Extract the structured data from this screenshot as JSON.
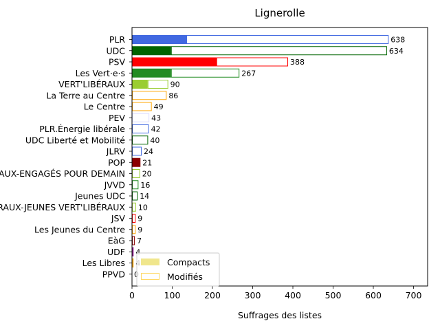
{
  "chart_data": {
    "type": "bar",
    "orientation": "horizontal",
    "title": "Lignerolle",
    "xlabel": "Suffrages des listes",
    "ylabel": "",
    "xlim": [
      0,
      735
    ],
    "xticks": [
      0,
      100,
      200,
      300,
      400,
      500,
      600,
      700
    ],
    "grid": false,
    "legend_placement": "lower-left",
    "legend": [
      {
        "label": "Compacts",
        "style": "filled",
        "color": "#f0e68c"
      },
      {
        "label": "Modifiés",
        "style": "outline",
        "color": "#ffd966"
      }
    ],
    "categories": [
      "PLR",
      "UDC",
      "PSV",
      "Les Vert·e·s",
      "VERT'LIBÉRAUX",
      "La Terre au Centre",
      "Le Centre",
      "PEV",
      "PLR.Énergie libérale",
      "UDC Liberté et Mobilité",
      "JLRV",
      "POP",
      "VERT'LIBÉRAUX-ENGAGÉS POUR DEMAIN",
      "JVVD",
      "Jeunes UDC",
      "VERT'LIBÉRAUX-JEUNES VERT'LIBÉRAUX",
      "JSV",
      "Les Jeunes du Centre",
      "EàG",
      "UDF",
      "Les Libres",
      "PPVD"
    ],
    "series": [
      {
        "name": "Compacts",
        "values": [
          135,
          97,
          210,
          97,
          39,
          0,
          0,
          0,
          0,
          0,
          0,
          21,
          0,
          0,
          0,
          0,
          0,
          0,
          0,
          0,
          0,
          0
        ]
      },
      {
        "name": "Modifiés",
        "values": [
          503,
          537,
          178,
          170,
          51,
          86,
          49,
          43,
          42,
          40,
          24,
          0,
          20,
          16,
          14,
          10,
          9,
          9,
          7,
          4,
          4,
          0
        ]
      }
    ],
    "totals": [
      638,
      634,
      388,
      267,
      90,
      86,
      49,
      43,
      42,
      40,
      24,
      21,
      20,
      16,
      14,
      10,
      9,
      9,
      7,
      4,
      4,
      0
    ],
    "colors": [
      "#4169e1",
      "#006400",
      "#ff0000",
      "#228b22",
      "#9acd32",
      "#ffa500",
      "#ffa500",
      "#dcdcff",
      "#4169e1",
      "#006400",
      "#4169e1",
      "#8b0000",
      "#9acd32",
      "#228b22",
      "#006400",
      "#9acd32",
      "#ff0000",
      "#ffa500",
      "#8b0000",
      "#800080",
      "#ffa500",
      "#808080"
    ],
    "labels_hidden_by_legend": [
      "Les Libres",
      "PPVD"
    ]
  }
}
